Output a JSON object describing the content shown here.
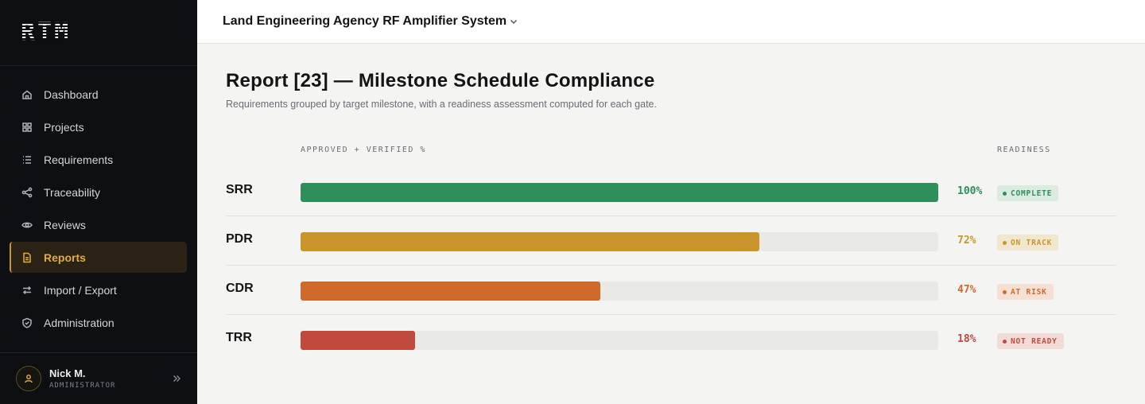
{
  "sidebar": {
    "logo": "RTM",
    "items": [
      {
        "label": "Dashboard",
        "icon": "home-icon",
        "active": false
      },
      {
        "label": "Projects",
        "icon": "grid-icon",
        "active": false
      },
      {
        "label": "Requirements",
        "icon": "list-icon",
        "active": false
      },
      {
        "label": "Traceability",
        "icon": "share-icon",
        "active": false
      },
      {
        "label": "Reviews",
        "icon": "eye-icon",
        "active": false
      },
      {
        "label": "Reports",
        "icon": "document-icon",
        "active": true
      },
      {
        "label": "Import / Export",
        "icon": "swap-icon",
        "active": false
      },
      {
        "label": "Administration",
        "icon": "shield-icon",
        "active": false
      }
    ],
    "user": {
      "name": "Nick M.",
      "role": "ADMINISTRATOR"
    }
  },
  "header": {
    "project_title": "Land Engineering Agency RF Amplifier System"
  },
  "page": {
    "title": "Report [23]  —  Milestone Schedule Compliance",
    "subtitle": "Requirements grouped by target milestone, with a readiness assessment computed for each gate."
  },
  "columns": {
    "progress": "APPROVED + VERIFIED %",
    "readiness": "READINESS"
  },
  "milestones": [
    {
      "gate": "SRR",
      "percent": 100,
      "percent_label": "100%",
      "status": "COMPLETE",
      "color": "#2e8f5b",
      "text_color": "#2e8f5b",
      "badge_bg": "#dcebe0"
    },
    {
      "gate": "PDR",
      "percent": 72,
      "percent_label": "72%",
      "status": "ON TRACK",
      "color": "#c9962b",
      "text_color": "#c9962b",
      "badge_bg": "#f1e7cf"
    },
    {
      "gate": "CDR",
      "percent": 47,
      "percent_label": "47%",
      "status": "AT RISK",
      "color": "#d06a2c",
      "text_color": "#d06a2c",
      "badge_bg": "#f5e0d3"
    },
    {
      "gate": "TRR",
      "percent": 18,
      "percent_label": "18%",
      "status": "NOT READY",
      "color": "#c14a3f",
      "text_color": "#c14a3f",
      "badge_bg": "#f3dbd8"
    }
  ]
}
